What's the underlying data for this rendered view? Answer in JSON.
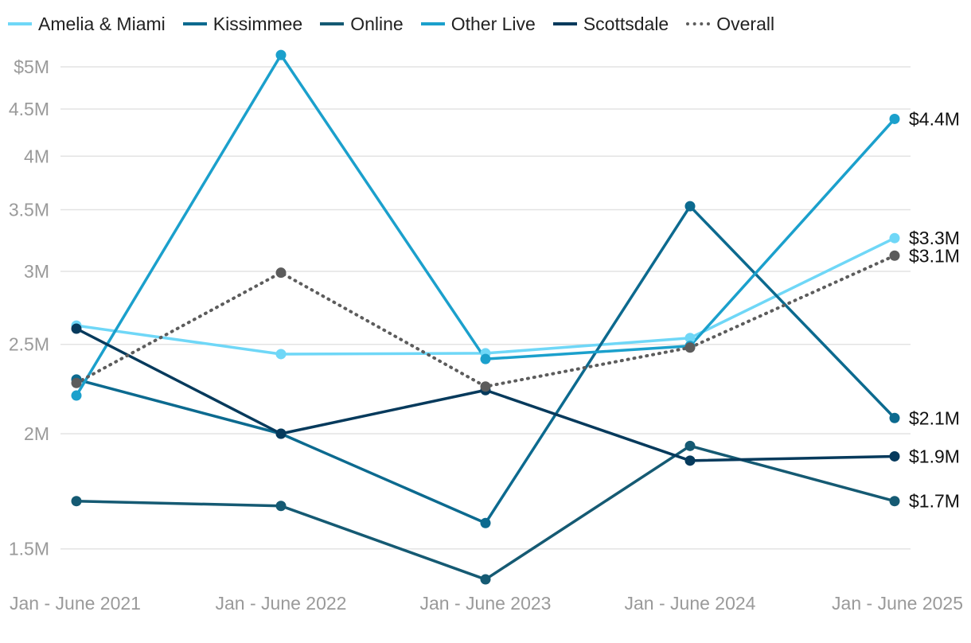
{
  "chart_data": {
    "type": "line",
    "title": "",
    "xlabel": "",
    "ylabel": "",
    "y_scale": "log",
    "ylim": [
      1400000,
      5200000
    ],
    "grid": true,
    "legend_position": "top-left",
    "categories": [
      "Jan - June 2021",
      "Jan - June 2022",
      "Jan - June 2023",
      "Jan - June 2024",
      "Jan - June 2025"
    ],
    "y_ticks": [
      {
        "value": 1500000,
        "label": "1.5M"
      },
      {
        "value": 2000000,
        "label": "2M"
      },
      {
        "value": 2500000,
        "label": "2.5M"
      },
      {
        "value": 3000000,
        "label": "3M"
      },
      {
        "value": 3500000,
        "label": "3.5M"
      },
      {
        "value": 4000000,
        "label": "4M"
      },
      {
        "value": 4500000,
        "label": "4.5M"
      },
      {
        "value": 5000000,
        "label": "$5M"
      }
    ],
    "series": [
      {
        "name": "Amelia & Miami",
        "color": "#6fd7f7",
        "style": "solid",
        "values": [
          2620000,
          2440000,
          2445000,
          2540000,
          3260000
        ],
        "end_label": "$3.3M"
      },
      {
        "name": "Kissimmee",
        "color": "#0c6a8f",
        "style": "solid",
        "values": [
          2290000,
          2000000,
          1600000,
          3530000,
          2080000
        ],
        "end_label": "$2.1M"
      },
      {
        "name": "Online",
        "color": "#155a73",
        "style": "solid",
        "values": [
          1690000,
          1670000,
          1390000,
          1940000,
          1690000
        ],
        "end_label": "$1.7M"
      },
      {
        "name": "Other Live",
        "color": "#1ba0cc",
        "style": "solid",
        "values": [
          2200000,
          5150000,
          2410000,
          2490000,
          4390000
        ],
        "end_label": "$4.4M"
      },
      {
        "name": "Scottsdale",
        "color": "#063a5c",
        "style": "solid",
        "values": [
          2600000,
          2000000,
          2230000,
          1870000,
          1890000
        ],
        "end_label": "$1.9M"
      },
      {
        "name": "Overall",
        "color": "#5c5c5c",
        "style": "dotted",
        "values": [
          2270000,
          2990000,
          2250000,
          2480000,
          3120000
        ],
        "end_label": "$3.1M"
      }
    ]
  }
}
